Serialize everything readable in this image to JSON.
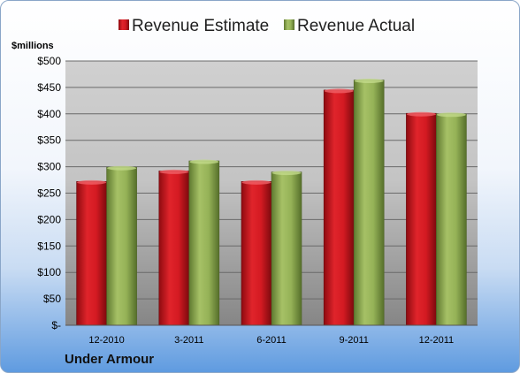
{
  "company": "Under Armour",
  "chart_data": {
    "type": "bar",
    "unit_label": "$millions",
    "categories": [
      "12-2010",
      "3-2011",
      "6-2011",
      "9-2011",
      "12-2011"
    ],
    "series": [
      {
        "name": "Revenue Estimate",
        "color": "#c8141e",
        "values": [
          272,
          292,
          272,
          445,
          401
        ]
      },
      {
        "name": "Revenue Actual",
        "color": "#8fae4f",
        "values": [
          299,
          311,
          290,
          464,
          400
        ]
      }
    ],
    "y_ticks": [
      {
        "value": 0,
        "label": "$-"
      },
      {
        "value": 50,
        "label": "$50"
      },
      {
        "value": 100,
        "label": "$100"
      },
      {
        "value": 150,
        "label": "$150"
      },
      {
        "value": 200,
        "label": "$200"
      },
      {
        "value": 250,
        "label": "$250"
      },
      {
        "value": 300,
        "label": "$300"
      },
      {
        "value": 350,
        "label": "$350"
      },
      {
        "value": 400,
        "label": "$400"
      },
      {
        "value": 450,
        "label": "$450"
      },
      {
        "value": 500,
        "label": "$500"
      }
    ],
    "ylim": [
      0,
      500
    ],
    "grid": true,
    "legend_position": "top"
  }
}
